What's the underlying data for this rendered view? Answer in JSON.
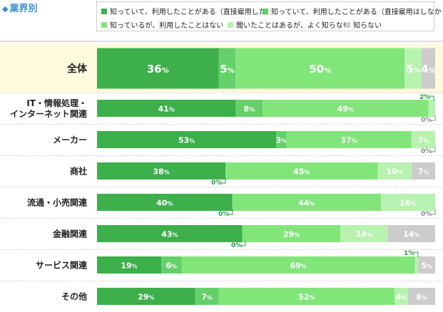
{
  "heading": "業界別",
  "legend": [
    {
      "label": "知っていて、利用したことがある（直接雇用した）",
      "color": "#3daf4b"
    },
    {
      "label": "知っていて、利用したことがある（直接雇用はしなかった）",
      "color": "#65cf6a"
    },
    {
      "label": "知っているが、利用したことはない",
      "color": "#82e57a"
    },
    {
      "label": "聞いたことはあるが、よく知らない",
      "color": "#b8f2b0"
    },
    {
      "label": "知らない",
      "color": "#cccccc"
    }
  ],
  "chart_data": {
    "type": "bar",
    "orientation": "horizontal",
    "stacked": true,
    "unit": "%",
    "categories": [
      "全体",
      "IT・情報処理・\nインターネット関連",
      "メーカー",
      "商社",
      "流通・小売関連",
      "金融関連",
      "サービス関連",
      "その他"
    ],
    "series": [
      {
        "name": "知っていて、利用したことがある（直接雇用した）",
        "color": "#3daf4b",
        "values": [
          36,
          41,
          53,
          38,
          40,
          43,
          19,
          29
        ]
      },
      {
        "name": "知っていて、利用したことがある（直接雇用はしなかった）",
        "color": "#65cf6a",
        "values": [
          5,
          8,
          3,
          0,
          0,
          0,
          6,
          7
        ]
      },
      {
        "name": "知っているが、利用したことはない",
        "color": "#82e57a",
        "values": [
          50,
          49,
          37,
          45,
          44,
          29,
          69,
          52
        ]
      },
      {
        "name": "聞いたことはあるが、よく知らない",
        "color": "#b8f2b0",
        "values": [
          5,
          2,
          7,
          10,
          16,
          14,
          1,
          4
        ]
      },
      {
        "name": "知らない",
        "color": "#cccccc",
        "values": [
          4,
          0,
          0,
          7,
          0,
          14,
          5,
          8
        ]
      }
    ],
    "label_colors": {
      "on_dark": "#ffffff",
      "on_light": "#ffffff",
      "callout": "#2a9a40",
      "callout_gray": "#888888"
    },
    "highlight_band_color": "#fff9de"
  }
}
